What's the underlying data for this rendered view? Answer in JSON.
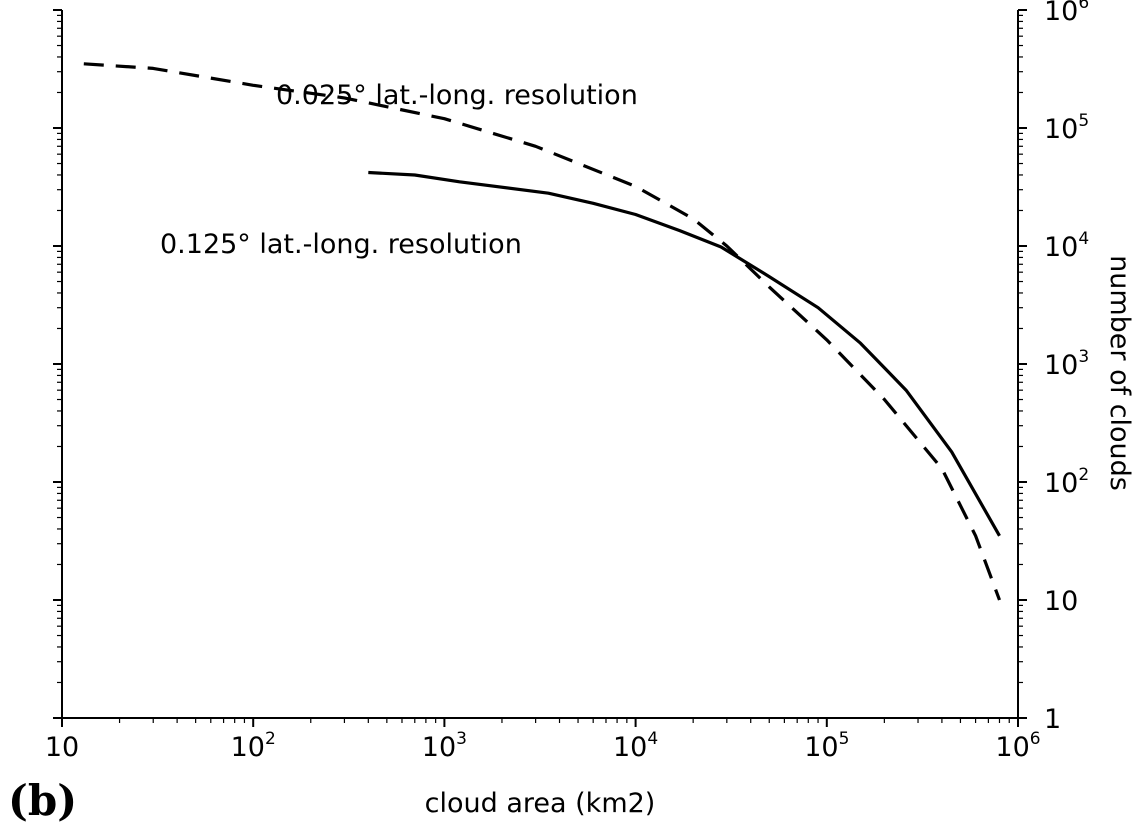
{
  "chart_data": {
    "type": "line",
    "panel_label": "(b)",
    "xlabel": "cloud area (km2)",
    "ylabel": "number of clouds",
    "xscale": "log",
    "yscale": "log",
    "xlim": [
      10,
      1000000
    ],
    "ylim": [
      1,
      1000000
    ],
    "grid": false,
    "x_tick_labels": [
      {
        "value": 10,
        "base": "10",
        "exp": ""
      },
      {
        "value": 100,
        "base": "10",
        "exp": "2"
      },
      {
        "value": 1000,
        "base": "10",
        "exp": "3"
      },
      {
        "value": 10000,
        "base": "10",
        "exp": "4"
      },
      {
        "value": 100000,
        "base": "10",
        "exp": "5"
      },
      {
        "value": 1000000,
        "base": "10",
        "exp": "6"
      }
    ],
    "y_tick_labels": [
      {
        "value": 1,
        "base": "1",
        "exp": ""
      },
      {
        "value": 10,
        "base": "10",
        "exp": ""
      },
      {
        "value": 100,
        "base": "10",
        "exp": "2"
      },
      {
        "value": 1000,
        "base": "10",
        "exp": "3"
      },
      {
        "value": 10000,
        "base": "10",
        "exp": "4"
      },
      {
        "value": 100000,
        "base": "10",
        "exp": "5"
      },
      {
        "value": 1000000,
        "base": "10",
        "exp": "6"
      }
    ],
    "series": [
      {
        "label": "0.025° lat.-long. resolution",
        "style": "dashed",
        "color": "#000000",
        "x": [
          13,
          30,
          100,
          300,
          1000,
          3000,
          10000,
          20000,
          30000,
          50000,
          100000,
          200000,
          400000,
          600000,
          800000
        ],
        "y": [
          350000,
          320000,
          230000,
          180000,
          120000,
          70000,
          32000,
          17000,
          10000,
          4500,
          1600,
          500,
          130,
          35,
          10
        ]
      },
      {
        "label": "0.125° lat.-long. resolution",
        "style": "solid",
        "color": "#000000",
        "x": [
          400,
          700,
          1200,
          3500,
          6000,
          10000,
          17000,
          28000,
          50000,
          90000,
          150000,
          260000,
          450000,
          800000
        ],
        "y": [
          42000,
          40000,
          35000,
          28000,
          23000,
          18500,
          13500,
          9800,
          5500,
          3000,
          1500,
          600,
          180,
          35
        ]
      }
    ],
    "annotations": [
      {
        "text": "0.025° lat.-long. resolution",
        "series": 0
      },
      {
        "text": "0.125° lat.-long. resolution",
        "series": 1
      }
    ]
  }
}
